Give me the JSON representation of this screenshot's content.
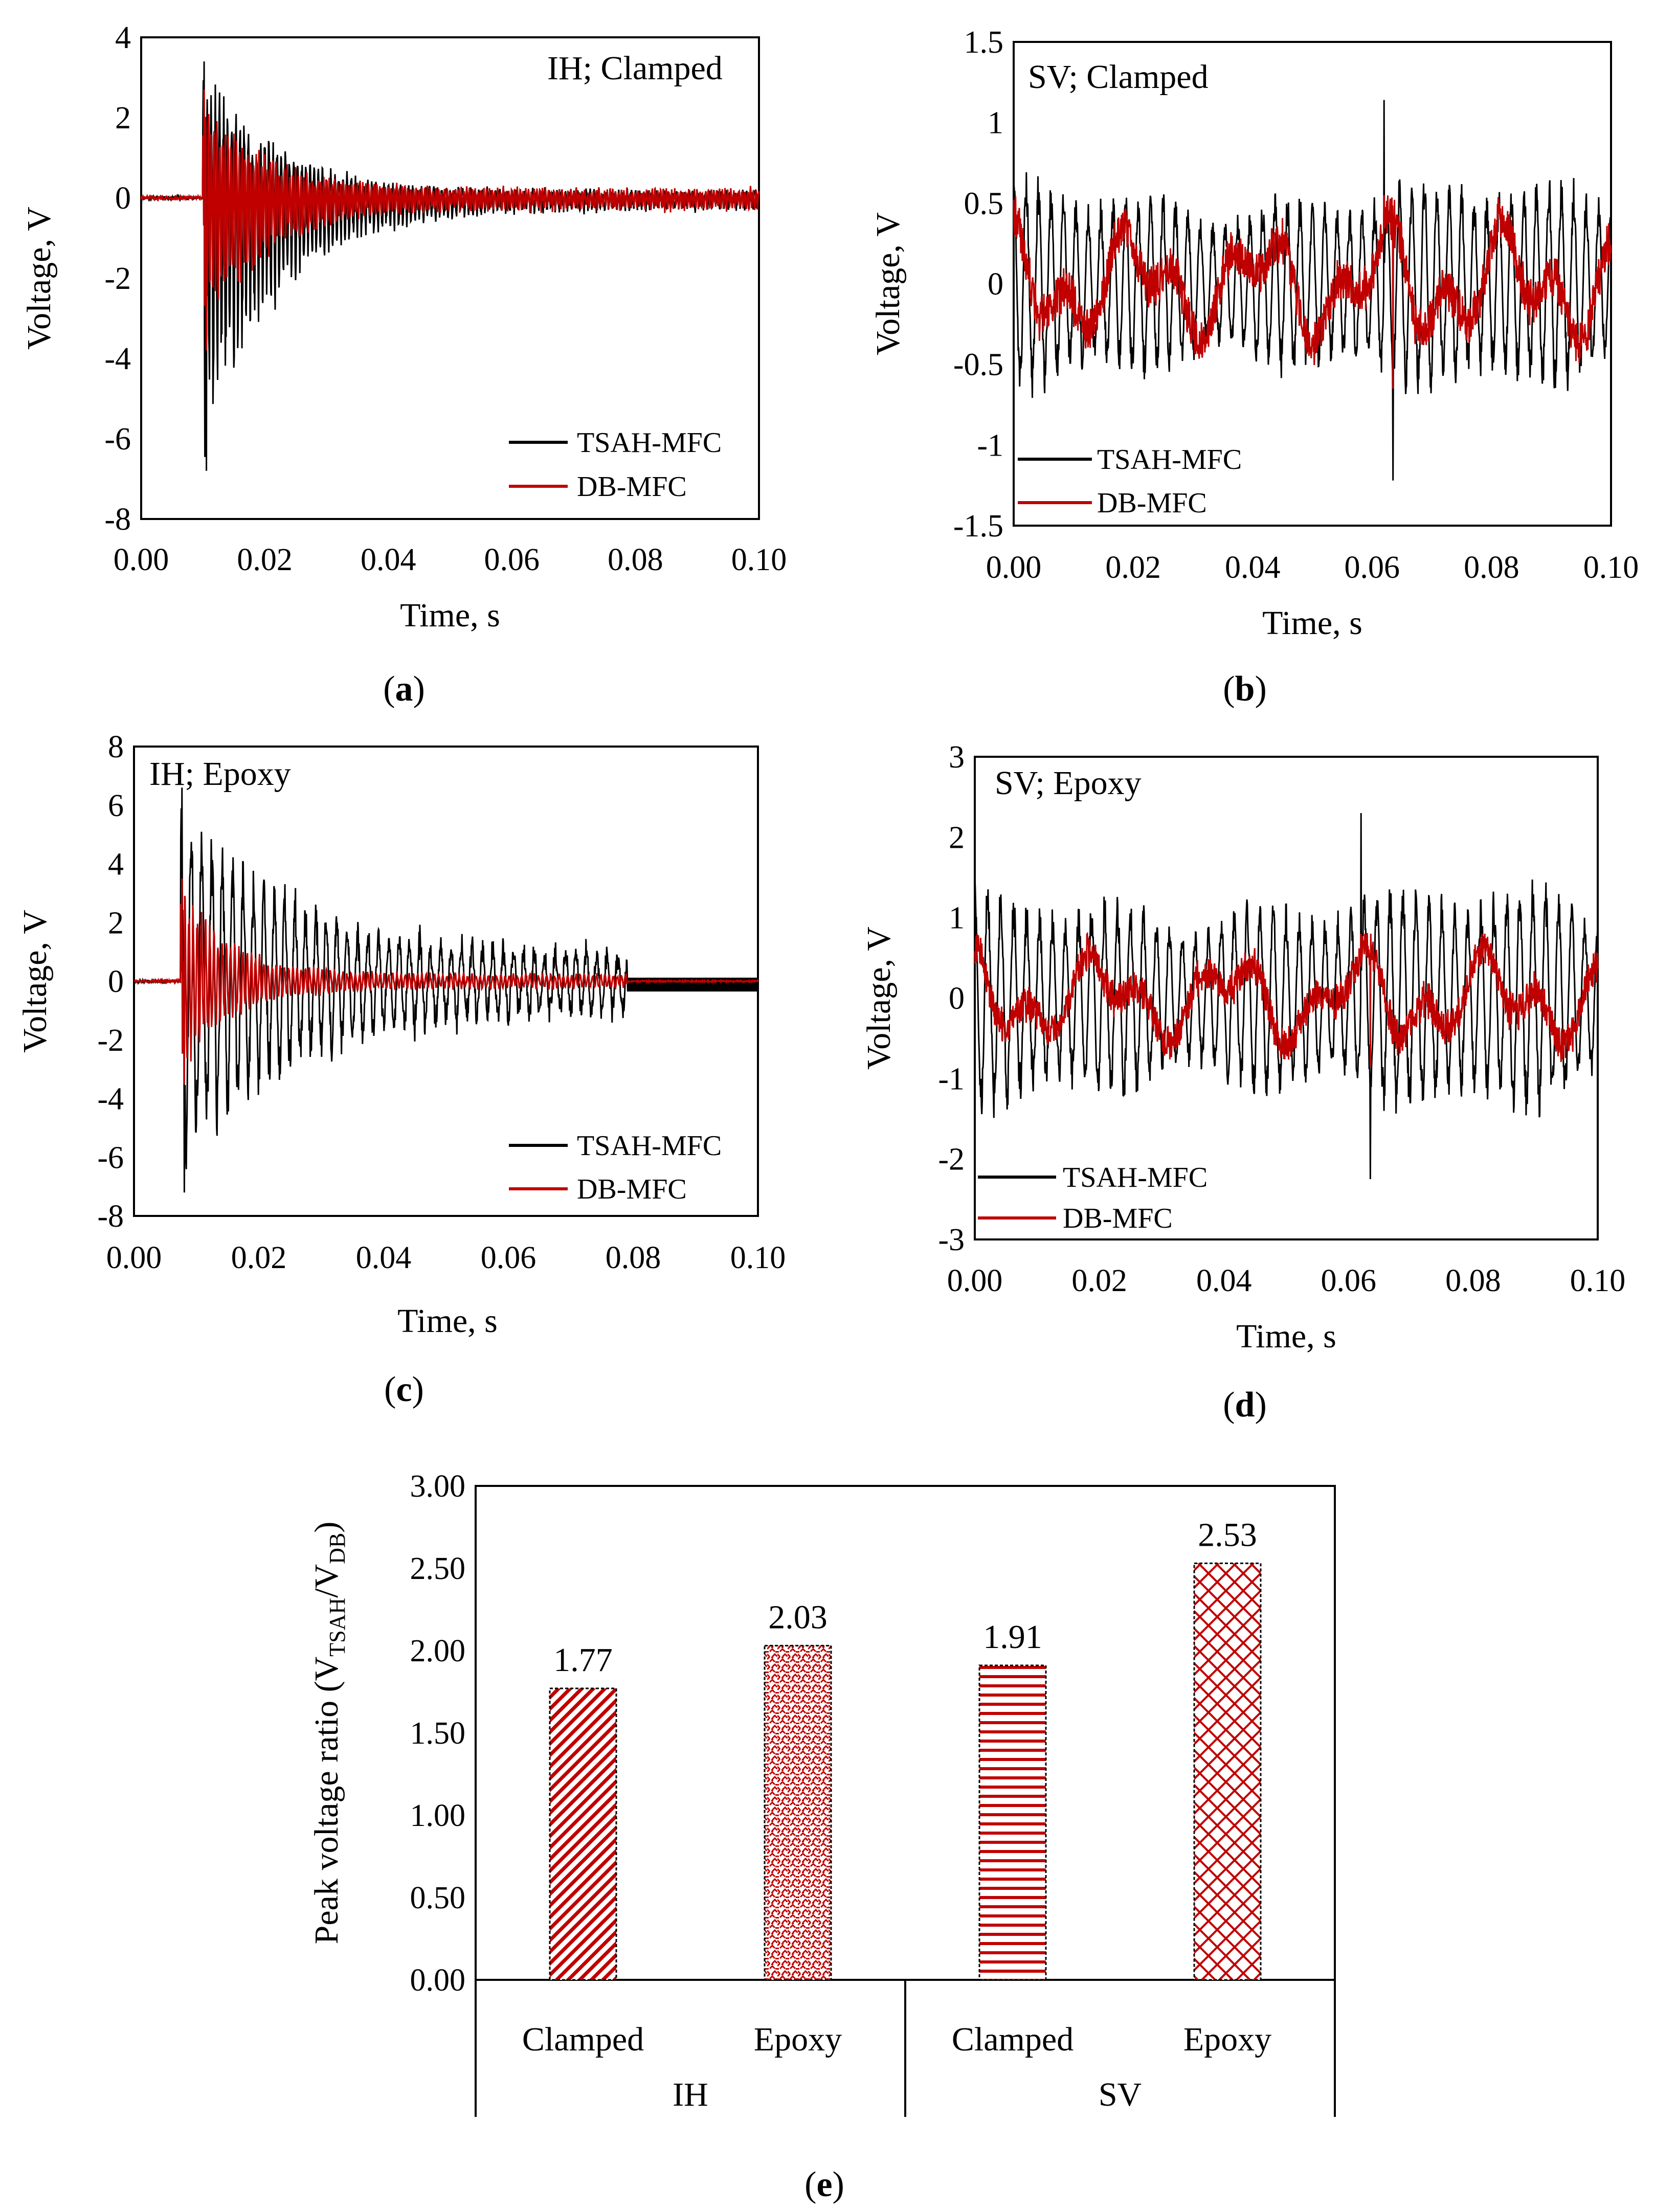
{
  "colors": {
    "tsah": "#000000",
    "db": "#c00000",
    "axis": "#000000"
  },
  "chart_data": [
    {
      "id": "a",
      "type": "line",
      "caption_letter": "a",
      "annotation": "IH; Clamped",
      "legend_position": "bottom-right",
      "xlabel": "Time, s",
      "ylabel": "Voltage, V",
      "xlim": [
        0,
        0.1
      ],
      "ylim": [
        -8,
        4
      ],
      "xticks": [
        0,
        0.02,
        0.04,
        0.06,
        0.08,
        0.1
      ],
      "xtick_labels": [
        "0.00",
        "0.02",
        "0.04",
        "0.06",
        "0.08",
        "0.10"
      ],
      "yticks": [
        -8,
        -6,
        -4,
        -2,
        0,
        2,
        4
      ],
      "ytick_labels": [
        "-8",
        "-6",
        "-4",
        "-2",
        "0",
        "2",
        "4"
      ],
      "series": [
        {
          "name": "TSAH-MFC",
          "signal": "impulse",
          "onset_s": 0.01,
          "peak_max_V": 3.4,
          "peak_min_V": -6.8,
          "decay_s": 0.012,
          "tail_amp_V": 0.3,
          "freq_hz": 1500
        },
        {
          "name": "DB-MFC",
          "signal": "impulse",
          "onset_s": 0.01,
          "peak_max_V": 2.7,
          "peak_min_V": -3.8,
          "decay_s": 0.01,
          "tail_amp_V": 0.3,
          "freq_hz": 2200
        }
      ]
    },
    {
      "id": "b",
      "type": "line",
      "caption_letter": "b",
      "annotation": "SV; Clamped",
      "legend_position": "bottom-left",
      "xlabel": "Time, s",
      "ylabel": "Voltage, V",
      "xlim": [
        0,
        0.1
      ],
      "ylim": [
        -1.5,
        1.5
      ],
      "xticks": [
        0,
        0.02,
        0.04,
        0.06,
        0.08,
        0.1
      ],
      "xtick_labels": [
        "0.00",
        "0.02",
        "0.04",
        "0.06",
        "0.08",
        "0.10"
      ],
      "yticks": [
        -1.5,
        -1,
        -0.5,
        0,
        0.5,
        1,
        1.5
      ],
      "ytick_labels": [
        "-1.5",
        "-1",
        "-0.5",
        "0",
        "0.5",
        "1",
        "1.5"
      ],
      "series": [
        {
          "name": "TSAH-MFC",
          "signal": "random",
          "amp_V": 0.75,
          "peak_max_V": 1.14,
          "peak_min_V": -1.22,
          "freq_hz": 480
        },
        {
          "name": "DB-MFC",
          "signal": "random",
          "amp_V": 0.28,
          "peak_max_V": 0.55,
          "peak_min_V": -0.65,
          "freq_hz": 110
        }
      ]
    },
    {
      "id": "c",
      "type": "line",
      "caption_letter": "c",
      "annotation": "IH; Epoxy",
      "legend_position": "bottom-right",
      "xlabel": "Time, s",
      "ylabel": "Voltage, V",
      "xlim": [
        0,
        0.1
      ],
      "ylim": [
        -8,
        8
      ],
      "xticks": [
        0,
        0.02,
        0.04,
        0.06,
        0.08,
        0.1
      ],
      "xtick_labels": [
        "0.00",
        "0.02",
        "0.04",
        "0.06",
        "0.08",
        "0.10"
      ],
      "yticks": [
        -8,
        -6,
        -4,
        -2,
        0,
        2,
        4,
        6,
        8
      ],
      "ytick_labels": [
        "-8",
        "-6",
        "-4",
        "-2",
        "0",
        "2",
        "4",
        "6",
        "8"
      ],
      "series": [
        {
          "name": "TSAH-MFC",
          "signal": "impulse",
          "onset_s": 0.0075,
          "end_s": 0.079,
          "peak_max_V": 6.6,
          "peak_min_V": -7.2,
          "decay_s": 0.018,
          "tail_amp_V": 1.1,
          "freq_hz": 600
        },
        {
          "name": "DB-MFC",
          "signal": "impulse",
          "onset_s": 0.0075,
          "end_s": 0.079,
          "peak_max_V": 3.5,
          "peak_min_V": -3.5,
          "decay_s": 0.008,
          "tail_amp_V": 0.25,
          "freq_hz": 1500
        }
      ]
    },
    {
      "id": "d",
      "type": "line",
      "caption_letter": "d",
      "annotation": "SV; Epoxy",
      "legend_position": "bottom-left",
      "xlabel": "Time, s",
      "ylabel": "Voltage, V",
      "xlim": [
        0,
        0.1
      ],
      "ylim": [
        -3,
        3
      ],
      "xticks": [
        0,
        0.02,
        0.04,
        0.06,
        0.08,
        0.1
      ],
      "xtick_labels": [
        "0.00",
        "0.02",
        "0.04",
        "0.06",
        "0.08",
        "0.10"
      ],
      "yticks": [
        -3,
        -2,
        -1,
        0,
        1,
        2,
        3
      ],
      "ytick_labels": [
        "-3",
        "-2",
        "-1",
        "0",
        "1",
        "2",
        "3"
      ],
      "series": [
        {
          "name": "TSAH-MFC",
          "signal": "random",
          "amp_V": 1.6,
          "peak_max_V": 2.3,
          "peak_min_V": -2.25,
          "freq_hz": 480
        },
        {
          "name": "DB-MFC",
          "signal": "random",
          "amp_V": 0.45,
          "peak_max_V": 0.8,
          "peak_min_V": -0.85,
          "freq_hz": 110
        }
      ]
    },
    {
      "id": "e",
      "type": "bar",
      "caption_letter": "e",
      "ylabel": "Peak voltage ratio (V",
      "ylabel_sub1": "TSAH",
      "ylabel_mid": "/V",
      "ylabel_sub2": "DB",
      "ylabel_end": ")",
      "ylim": [
        0,
        3
      ],
      "yticks": [
        0,
        0.5,
        1,
        1.5,
        2,
        2.5,
        3
      ],
      "ytick_labels": [
        "0.00",
        "0.50",
        "1.00",
        "1.50",
        "2.00",
        "2.50",
        "3.00"
      ],
      "categories": [
        "Clamped",
        "Epoxy",
        "Clamped",
        "Epoxy"
      ],
      "groups": [
        "IH",
        "SV"
      ],
      "values": [
        1.77,
        2.03,
        1.91,
        2.53
      ],
      "value_labels": [
        "1.77",
        "2.03",
        "1.91",
        "2.53"
      ],
      "patterns": [
        "diagonal",
        "weave",
        "horizontal",
        "crosshatch"
      ]
    }
  ]
}
